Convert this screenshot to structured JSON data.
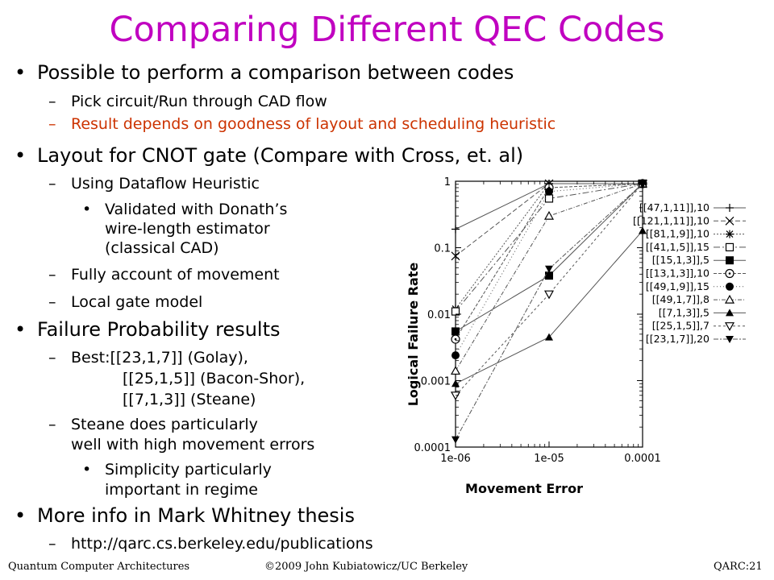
{
  "slide": {
    "title": "Comparing Different QEC Codes",
    "bullets": [
      "Possible to perform a comparison between codes",
      "Pick circuit/Run through CAD flow",
      "Result depends on goodness of layout and scheduling heuristic",
      "Layout for CNOT gate (Compare with Cross, et. al)",
      "Using Dataflow Heuristic",
      "Validated with Donath’s",
      "wire-length estimator",
      "(classical CAD)",
      "Fully account of movement",
      "Local gate model",
      "Failure Probability results",
      "Best:[[23,1,7]] (Golay),",
      "[[25,1,5]] (Bacon-Shor),",
      "[[7,1,3]] (Steane)",
      "Steane does particularly",
      "well with high movement errors",
      "Simplicity particularly",
      "important in regime",
      "More info in Mark Whitney thesis",
      "http://qarc.cs.berkeley.edu/publications"
    ],
    "highlight_color": "#cc3300",
    "title_color": "#c000c0"
  },
  "footer": {
    "left": "Quantum Computer Architectures",
    "center": "©2009 John Kubiatowicz/UC Berkeley",
    "right": "QARC:21"
  },
  "chart_data": {
    "type": "line",
    "xlabel": "Movement Error",
    "ylabel": "Logical Failure Rate",
    "x": [
      1e-06,
      1e-05,
      0.0001
    ],
    "x_tick_labels": [
      "1e-06",
      "1e-05",
      "0.0001"
    ],
    "y_tick_labels": [
      "1",
      "0.1",
      "0.01",
      "0.001",
      "0.0001"
    ],
    "xscale": "log",
    "yscale": "log",
    "xlim": [
      1e-06,
      0.0001
    ],
    "ylim": [
      0.0001,
      1
    ],
    "grid": false,
    "legend_position": "right",
    "series": [
      {
        "name": "[[47,1,11]],10",
        "marker": "plus",
        "values": [
          0.19,
          0.92,
          0.92
        ]
      },
      {
        "name": "[[121,1,11]],10",
        "marker": "x",
        "values": [
          0.075,
          0.92,
          0.92
        ]
      },
      {
        "name": "[[81,1,9]],10",
        "marker": "star",
        "values": [
          0.012,
          0.92,
          0.92
        ]
      },
      {
        "name": "[[41,1,5]],15",
        "marker": "square-open",
        "values": [
          0.011,
          0.55,
          0.92
        ]
      },
      {
        "name": "[[15,1,3]],5",
        "marker": "square-filled",
        "values": [
          0.0055,
          0.038,
          0.92
        ]
      },
      {
        "name": "[[13,1,3]],10",
        "marker": "circle-dot",
        "values": [
          0.0042,
          0.8,
          0.92
        ]
      },
      {
        "name": "[[49,1,9]],15",
        "marker": "circle-filled",
        "values": [
          0.0024,
          0.7,
          0.92
        ]
      },
      {
        "name": "[[49,1,7]],8",
        "marker": "triangle-open",
        "values": [
          0.0014,
          0.3,
          0.92
        ]
      },
      {
        "name": "[[7,1,3]],5",
        "marker": "triangle-filled",
        "values": [
          0.0009,
          0.0045,
          0.18
        ]
      },
      {
        "name": "[[25,1,5]],7",
        "marker": "triangle-down-open",
        "values": [
          0.0006,
          0.02,
          0.92
        ]
      },
      {
        "name": "[[23,1,7]],20",
        "marker": "triangle-down-filled",
        "values": [
          0.00013,
          0.048,
          0.92
        ]
      }
    ]
  }
}
